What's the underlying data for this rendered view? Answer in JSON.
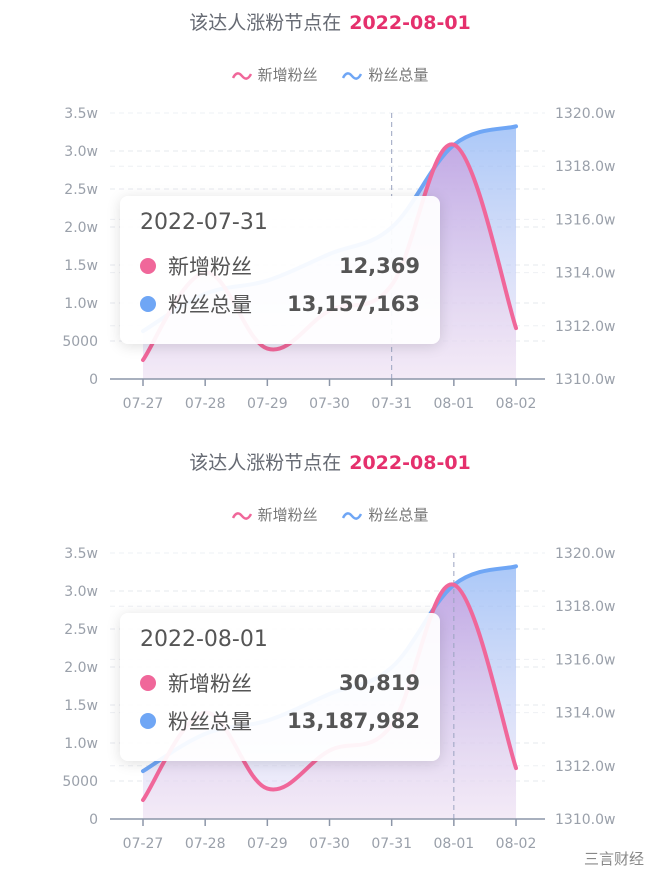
{
  "colors": {
    "new_fans": "#f0679a",
    "total_fans": "#6fa6f5",
    "highlight": "#e5306d"
  },
  "watermark": "三言财经",
  "chart_data": [
    {
      "type": "line",
      "title_prefix": "该达人涨粉节点在",
      "title_date": "2022-08-01",
      "categories": [
        "07-27",
        "07-28",
        "07-29",
        "07-30",
        "07-31",
        "08-01",
        "08-02"
      ],
      "left_ticks": [
        "0",
        "5000",
        "1.0w",
        "1.5w",
        "2.0w",
        "2.5w",
        "3.0w",
        "3.5w"
      ],
      "right_ticks": [
        "1310.0w",
        "1312.0w",
        "1314.0w",
        "1316.0w",
        "1318.0w",
        "1320.0w"
      ],
      "ylim_left": [
        0,
        35000
      ],
      "ylim_right_w": [
        1310,
        1320
      ],
      "grid": true,
      "legend_position": "top",
      "series": [
        {
          "name": "新增粉丝",
          "axis": "left",
          "values": [
            2500,
            14000,
            4000,
            9000,
            12369,
            30819,
            6700
          ]
        },
        {
          "name": "粉丝总量",
          "axis": "right",
          "values_w": [
            1311.8,
            1313.2,
            1313.7,
            1314.7,
            1315.7,
            1318.8,
            1319.5
          ],
          "area": true
        }
      ],
      "highlight_category": "07-31",
      "tooltip": {
        "date": "2022-07-31",
        "rows": [
          {
            "label": "新增粉丝",
            "value": "12,369"
          },
          {
            "label": "粉丝总量",
            "value": "13,157,163"
          }
        ]
      }
    },
    {
      "type": "line",
      "title_prefix": "该达人涨粉节点在",
      "title_date": "2022-08-01",
      "categories": [
        "07-27",
        "07-28",
        "07-29",
        "07-30",
        "07-31",
        "08-01",
        "08-02"
      ],
      "left_ticks": [
        "0",
        "5000",
        "1.0w",
        "1.5w",
        "2.0w",
        "2.5w",
        "3.0w",
        "3.5w"
      ],
      "right_ticks": [
        "1310.0w",
        "1312.0w",
        "1314.0w",
        "1316.0w",
        "1318.0w",
        "1320.0w"
      ],
      "ylim_left": [
        0,
        35000
      ],
      "ylim_right_w": [
        1310,
        1320
      ],
      "grid": true,
      "legend_position": "top",
      "series": [
        {
          "name": "新增粉丝",
          "axis": "left",
          "values": [
            2500,
            14000,
            4000,
            9000,
            12369,
            30819,
            6700
          ]
        },
        {
          "name": "粉丝总量",
          "axis": "right",
          "values_w": [
            1311.8,
            1313.2,
            1313.7,
            1314.7,
            1315.7,
            1318.8,
            1319.5
          ],
          "area": true
        }
      ],
      "highlight_category": "08-01",
      "tooltip": {
        "date": "2022-08-01",
        "rows": [
          {
            "label": "新增粉丝",
            "value": "30,819"
          },
          {
            "label": "粉丝总量",
            "value": "13,187,982"
          }
        ]
      }
    }
  ]
}
